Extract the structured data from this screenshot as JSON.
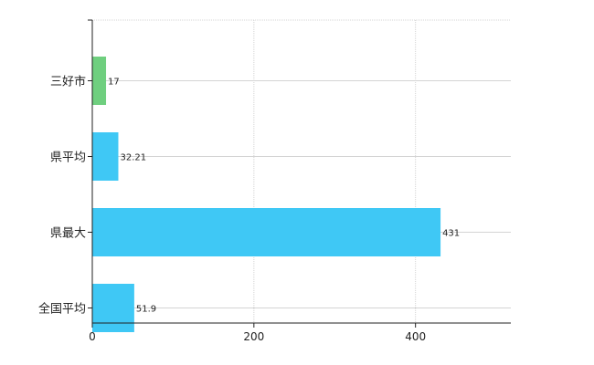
{
  "chart_data": {
    "type": "bar",
    "orientation": "horizontal",
    "categories": [
      "三好市",
      "県平均",
      "県最大",
      "全国平均"
    ],
    "values": [
      17,
      32.21,
      431,
      51.9
    ],
    "value_labels": [
      "17",
      "32.21",
      "431",
      "51.9"
    ],
    "colors": [
      "#6fcf7f",
      "#3fc8f5",
      "#3fc8f5",
      "#3fc8f5"
    ],
    "x_ticks": [
      0,
      200,
      400
    ],
    "xlim": [
      0,
      518
    ],
    "grid": true,
    "title": "",
    "xlabel": "",
    "ylabel": ""
  }
}
